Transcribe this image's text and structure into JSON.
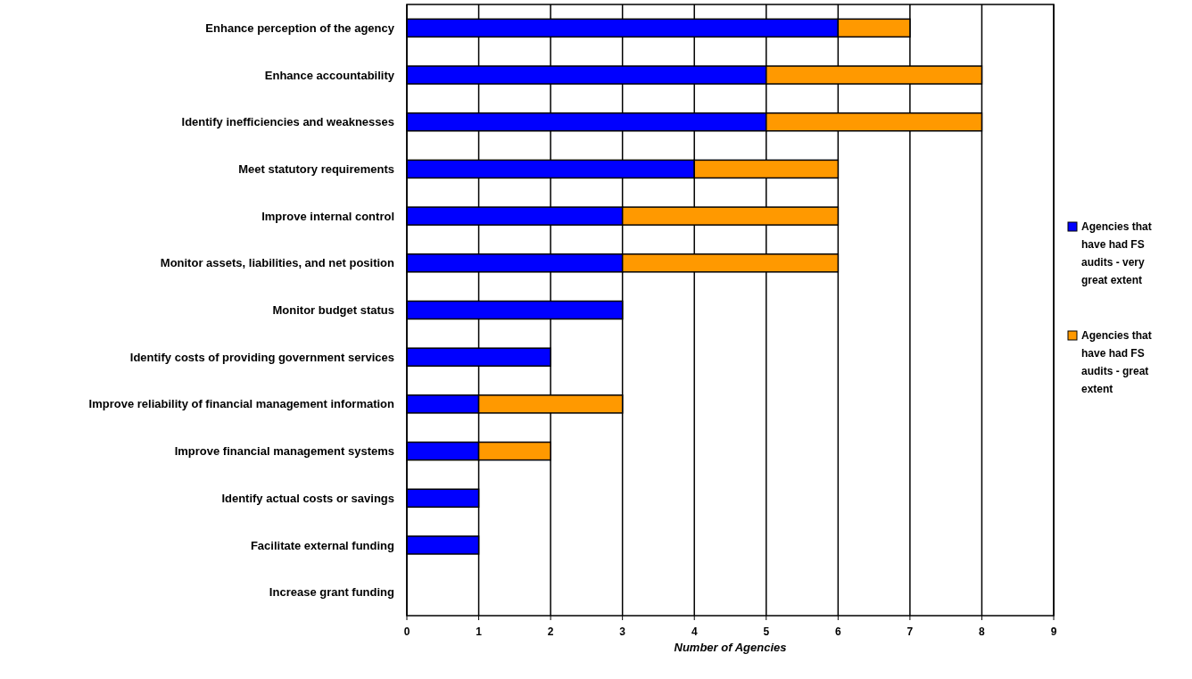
{
  "chart_data": {
    "type": "bar",
    "orientation": "horizontal",
    "stacked": true,
    "categories": [
      "Enhance perception of the agency",
      "Enhance accountability",
      "Identify inefficiencies and weaknesses",
      "Meet statutory requirements",
      "Improve internal control",
      "Monitor assets, liabilities, and net position",
      "Monitor budget status",
      "Identify costs of providing government services",
      "Improve reliability of financial management information",
      "Improve financial management systems",
      "Identify actual costs or savings",
      "Facilitate external funding",
      "Increase grant funding"
    ],
    "series": [
      {
        "name": "Agencies that have had FS audits - very great extent",
        "color": "#0000ff",
        "values": [
          6,
          5,
          5,
          4,
          3,
          3,
          3,
          2,
          1,
          1,
          1,
          1,
          0
        ]
      },
      {
        "name": "Agencies that have had FS audits - great extent",
        "color": "#ff9900",
        "values": [
          1,
          3,
          3,
          2,
          3,
          3,
          0,
          0,
          2,
          1,
          0,
          0,
          0
        ]
      }
    ],
    "xlim": [
      0,
      9
    ],
    "xticks": [
      0,
      1,
      2,
      3,
      4,
      5,
      6,
      7,
      8,
      9
    ],
    "xlabel": "Number of Agencies",
    "grid": "x",
    "legend": "right"
  }
}
